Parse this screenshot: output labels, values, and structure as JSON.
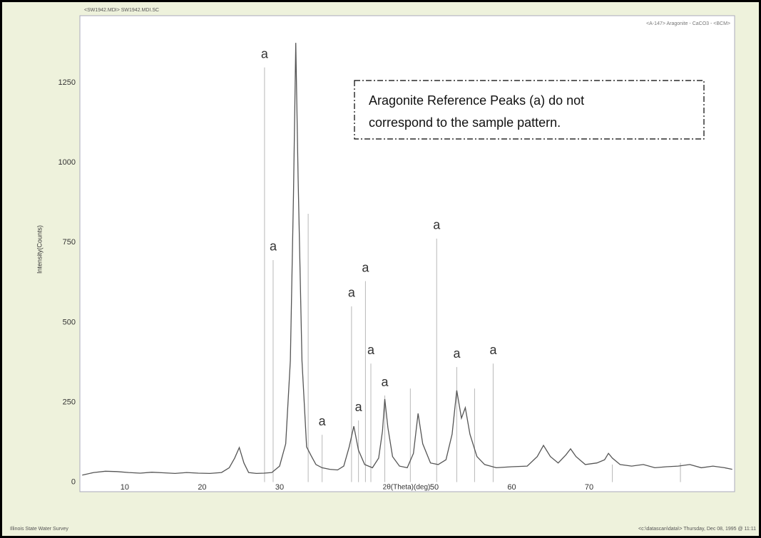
{
  "chart_data": {
    "type": "line",
    "header_left": "<SW1942.MDI> SW1942.MDI.SC",
    "header_right": "<A-147> Aragonite - CaCO3 - <BCM>",
    "footer_left": "Illinois State Water Survey",
    "footer_right": "<c:\\datascan\\data\\> Thursday, Dec 08, 1995 @ 11:11",
    "x_label": "2θ(Theta)(deg)",
    "y_label": "Intensity(Counts)",
    "annotation": [
      "Aragonite Reference Peaks (a) do not",
      "correspond to the sample pattern."
    ],
    "xlim": [
      4.2,
      88.8
    ],
    "ylim": [
      -30,
      1460
    ],
    "xticks": [
      10,
      20,
      30,
      50,
      60,
      70
    ],
    "yticks": [
      0,
      250,
      500,
      750,
      1000,
      1250
    ],
    "series": [
      {
        "color": "#555555",
        "x": [
          4.5,
          6,
          7.5,
          9,
          10.5,
          12,
          13.5,
          15,
          16.5,
          18,
          19.5,
          21,
          22.5,
          23.5,
          24.2,
          24.8,
          25.4,
          26,
          27,
          28,
          29,
          30,
          30.8,
          31.4,
          31.8,
          32.1,
          32.4,
          32.9,
          33.5,
          34.1,
          34.7,
          35.5,
          36.5,
          37.5,
          38.3,
          39,
          39.6,
          40.2,
          41,
          42,
          42.8,
          43.3,
          43.6,
          44,
          44.6,
          45.5,
          46.5,
          47.3,
          47.9,
          48.5,
          49.5,
          50.5,
          51.5,
          52.3,
          52.9,
          53.5,
          54,
          54.6,
          55.5,
          56.5,
          58,
          60,
          62,
          63.3,
          64.1,
          65,
          66,
          67,
          67.6,
          68.3,
          69.5,
          71,
          72,
          72.5,
          73,
          74,
          75.5,
          77,
          78.5,
          80,
          81.5,
          83,
          84.5,
          86,
          87.5,
          88.5
        ],
        "values": [
          22,
          30,
          34,
          33,
          30,
          28,
          31,
          29,
          27,
          30,
          28,
          27,
          30,
          45,
          75,
          108,
          60,
          30,
          27,
          28,
          30,
          50,
          120,
          380,
          900,
          1375,
          950,
          380,
          110,
          82,
          55,
          45,
          40,
          38,
          50,
          110,
          175,
          100,
          55,
          45,
          75,
          160,
          260,
          170,
          80,
          50,
          45,
          90,
          215,
          120,
          60,
          55,
          70,
          150,
          287,
          200,
          233,
          150,
          80,
          55,
          45,
          48,
          50,
          80,
          115,
          80,
          60,
          85,
          104,
          80,
          55,
          60,
          70,
          90,
          75,
          55,
          50,
          55,
          45,
          48,
          50,
          55,
          45,
          50,
          45,
          40
        ]
      },
      {
        "color": "#b8b8b8",
        "mark": "stick",
        "x": [
          28.06,
          29.17,
          33.7,
          35.5,
          39.3,
          40.2,
          41.1,
          41.8,
          43.6,
          46.9,
          50.3,
          52.9,
          55.2,
          57.6,
          73,
          81.8
        ],
        "values": [
          1298,
          695,
          840,
          148,
          550,
          193,
          629,
          371,
          271,
          293,
          762,
          360,
          293,
          371,
          55,
          60
        ],
        "labels": [
          "a",
          "a",
          null,
          "a",
          "a",
          "a",
          "a",
          "a",
          "a",
          null,
          "a",
          "a",
          null,
          "a",
          null,
          null
        ]
      }
    ]
  }
}
